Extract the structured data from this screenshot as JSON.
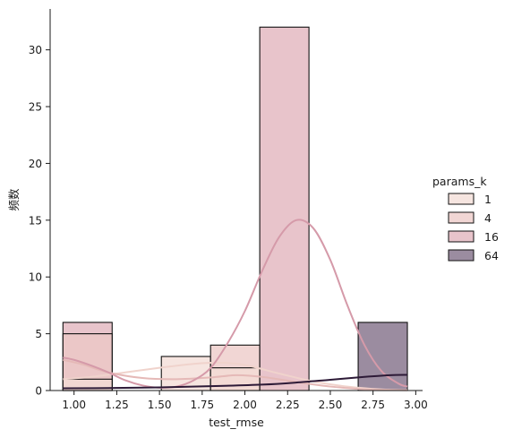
{
  "chart_data": {
    "type": "histogram",
    "xlabel": "test_rmse",
    "ylabel": "频数",
    "xlim": [
      0.86,
      3.04
    ],
    "ylim": [
      0,
      33.6
    ],
    "xticks": [
      "1.00",
      "1.25",
      "1.50",
      "1.75",
      "2.00",
      "2.25",
      "2.50",
      "2.75",
      "3.00"
    ],
    "xtick_values": [
      1.0,
      1.25,
      1.5,
      1.75,
      2.0,
      2.25,
      2.5,
      2.75,
      3.0
    ],
    "yticks": [
      "0",
      "5",
      "10",
      "15",
      "20",
      "25",
      "30"
    ],
    "ytick_values": [
      0,
      5,
      10,
      15,
      20,
      25,
      30
    ],
    "bin_edges": [
      0.935,
      1.223,
      1.511,
      1.799,
      2.087,
      2.375,
      2.663,
      2.951
    ],
    "legend": {
      "title": "params_k",
      "position": "center-right",
      "entries": [
        "1",
        "4",
        "16",
        "64"
      ]
    },
    "series": [
      {
        "name": "1",
        "color": "#f3dcd6",
        "counts": [
          1,
          0,
          3,
          2,
          0,
          0,
          0
        ],
        "kde": [
          [
            0.935,
            1.0
          ],
          [
            1.1,
            1.2
          ],
          [
            1.3,
            1.6
          ],
          [
            1.5,
            2.0
          ],
          [
            1.7,
            2.35
          ],
          [
            1.85,
            2.45
          ],
          [
            2.0,
            2.25
          ],
          [
            2.2,
            1.5
          ],
          [
            2.4,
            0.8
          ],
          [
            2.6,
            0.35
          ],
          [
            2.8,
            0.1
          ],
          [
            2.951,
            0.03
          ]
        ]
      },
      {
        "name": "4",
        "color": "#ecc8c5",
        "counts": [
          5,
          0,
          0,
          4,
          0,
          0,
          0
        ],
        "kde": [
          [
            0.935,
            2.7
          ],
          [
            1.05,
            2.3
          ],
          [
            1.2,
            1.6
          ],
          [
            1.4,
            1.1
          ],
          [
            1.6,
            1.0
          ],
          [
            1.8,
            1.15
          ],
          [
            1.95,
            1.35
          ],
          [
            2.1,
            1.2
          ],
          [
            2.3,
            0.75
          ],
          [
            2.5,
            0.35
          ],
          [
            2.7,
            0.12
          ],
          [
            2.951,
            0.03
          ]
        ]
      },
      {
        "name": "16",
        "color": "#e0b0ba",
        "counts": [
          6,
          0,
          0,
          0,
          32,
          0,
          0
        ],
        "kde": [
          [
            0.935,
            2.9
          ],
          [
            1.0,
            2.7
          ],
          [
            1.1,
            2.2
          ],
          [
            1.2,
            1.6
          ],
          [
            1.3,
            0.9
          ],
          [
            1.4,
            0.45
          ],
          [
            1.5,
            0.25
          ],
          [
            1.6,
            0.35
          ],
          [
            1.7,
            0.9
          ],
          [
            1.8,
            2.0
          ],
          [
            1.9,
            4.2
          ],
          [
            2.0,
            7.0
          ],
          [
            2.1,
            10.5
          ],
          [
            2.2,
            13.5
          ],
          [
            2.3,
            15.0
          ],
          [
            2.4,
            14.3
          ],
          [
            2.5,
            11.5
          ],
          [
            2.6,
            7.5
          ],
          [
            2.7,
            4.0
          ],
          [
            2.8,
            1.7
          ],
          [
            2.9,
            0.6
          ],
          [
            2.951,
            0.35
          ]
        ]
      },
      {
        "name": "64",
        "color": "#7a6680",
        "counts": [
          0,
          0,
          0,
          0,
          0,
          0,
          6
        ],
        "kde": [
          [
            0.935,
            0.2
          ],
          [
            1.2,
            0.22
          ],
          [
            1.5,
            0.28
          ],
          [
            1.8,
            0.38
          ],
          [
            2.1,
            0.52
          ],
          [
            2.3,
            0.7
          ],
          [
            2.5,
            0.95
          ],
          [
            2.7,
            1.2
          ],
          [
            2.85,
            1.35
          ],
          [
            2.951,
            1.38
          ]
        ]
      }
    ]
  }
}
